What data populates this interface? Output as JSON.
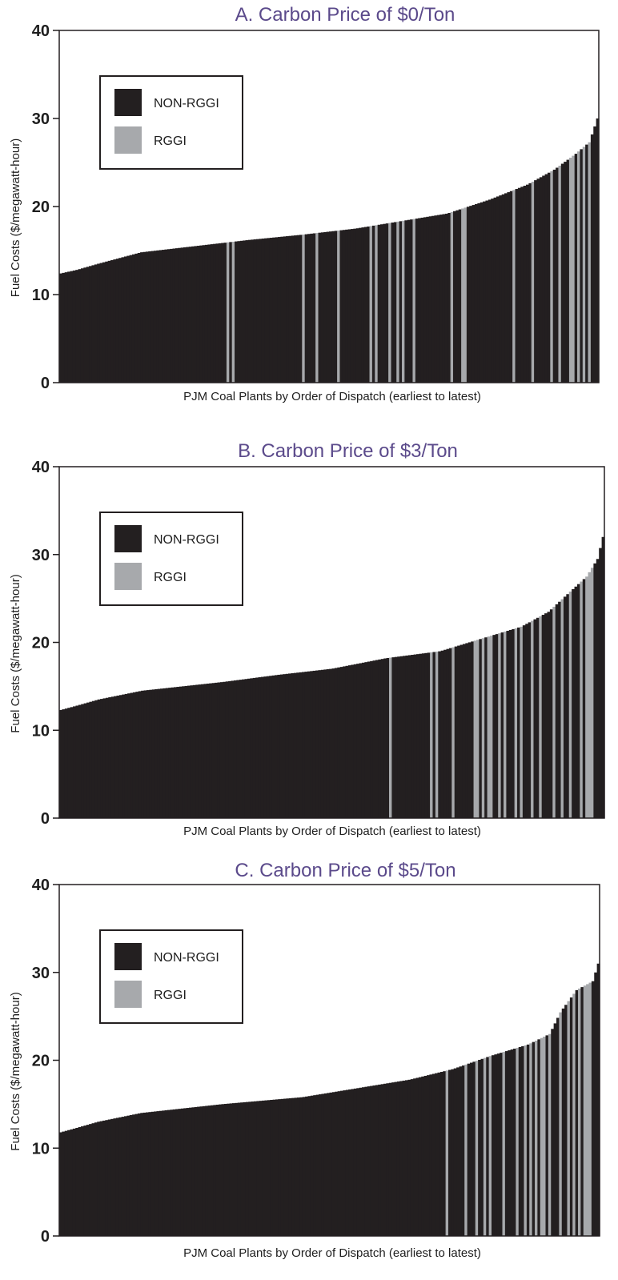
{
  "colors": {
    "non_rggi": "#231f20",
    "rggi": "#a7a9ac",
    "title": "#5b4a8b"
  },
  "chart_data": [
    {
      "type": "bar",
      "title": "A. Carbon Price of $0/Ton",
      "xlabel": "PJM Coal Plants by Order of Dispatch (earliest to latest)",
      "ylabel": "Fuel Costs ($/megawatt-hour)",
      "ylim": [
        0,
        40
      ],
      "yticks": [
        0,
        10,
        20,
        30,
        40
      ],
      "grid": false,
      "legend": {
        "placement": "top-left",
        "entries": [
          "NON-RGGI",
          "RGGI"
        ]
      },
      "series": [
        {
          "name": "NON-RGGI"
        },
        {
          "name": "RGGI"
        }
      ],
      "plants": 200,
      "start_value": 12.4,
      "end_value": 30.0,
      "curve": [
        [
          0,
          12.4
        ],
        [
          0.03,
          12.8
        ],
        [
          0.07,
          13.5
        ],
        [
          0.15,
          14.8
        ],
        [
          0.25,
          15.5
        ],
        [
          0.35,
          16.2
        ],
        [
          0.45,
          16.8
        ],
        [
          0.55,
          17.5
        ],
        [
          0.65,
          18.5
        ],
        [
          0.72,
          19.2
        ],
        [
          0.8,
          20.8
        ],
        [
          0.87,
          22.5
        ],
        [
          0.92,
          24.2
        ],
        [
          0.96,
          26.0
        ],
        [
          0.985,
          27.3
        ],
        [
          1.0,
          30.0
        ]
      ],
      "rggi_positions": [
        0.313,
        0.323,
        0.452,
        0.476,
        0.52,
        0.578,
        0.587,
        0.615,
        0.63,
        0.64,
        0.66,
        0.728,
        0.748,
        0.753,
        0.843,
        0.878,
        0.915,
        0.932,
        0.948,
        0.956,
        0.963,
        0.976,
        0.986
      ]
    },
    {
      "type": "bar",
      "title": "B. Carbon Price of $3/Ton",
      "xlabel": "PJM Coal Plants by Order of Dispatch (earliest to latest)",
      "ylabel": "Fuel Costs ($/megawatt-hour)",
      "ylim": [
        0,
        40
      ],
      "yticks": [
        0,
        10,
        20,
        30,
        40
      ],
      "grid": false,
      "legend": {
        "placement": "top-left",
        "entries": [
          "NON-RGGI",
          "RGGI"
        ]
      },
      "series": [
        {
          "name": "NON-RGGI"
        },
        {
          "name": "RGGI"
        }
      ],
      "plants": 200,
      "start_value": 12.3,
      "end_value": 32.0,
      "curve": [
        [
          0,
          12.3
        ],
        [
          0.03,
          12.8
        ],
        [
          0.07,
          13.5
        ],
        [
          0.15,
          14.5
        ],
        [
          0.3,
          15.5
        ],
        [
          0.4,
          16.3
        ],
        [
          0.5,
          17.0
        ],
        [
          0.6,
          18.2
        ],
        [
          0.7,
          19.0
        ],
        [
          0.78,
          20.5
        ],
        [
          0.85,
          21.8
        ],
        [
          0.9,
          23.5
        ],
        [
          0.94,
          25.8
        ],
        [
          0.97,
          27.5
        ],
        [
          0.99,
          29.5
        ],
        [
          1.0,
          32.0
        ]
      ],
      "rggi_positions": [
        0.607,
        0.681,
        0.695,
        0.723,
        0.762,
        0.77,
        0.78,
        0.787,
        0.795,
        0.808,
        0.82,
        0.838,
        0.848,
        0.87,
        0.885,
        0.912,
        0.925,
        0.94,
        0.96,
        0.968,
        0.975,
        0.982
      ]
    },
    {
      "type": "bar",
      "title": "C. Carbon Price of $5/Ton",
      "xlabel": "PJM Coal Plants by Order of Dispatch (earliest to latest)",
      "ylabel": "Fuel Costs ($/megawatt-hour)",
      "ylim": [
        0,
        40
      ],
      "yticks": [
        0,
        10,
        20,
        30,
        40
      ],
      "grid": false,
      "legend": {
        "placement": "top-left",
        "entries": [
          "NON-RGGI",
          "RGGI"
        ]
      },
      "series": [
        {
          "name": "NON-RGGI"
        },
        {
          "name": "RGGI"
        }
      ],
      "plants": 200,
      "start_value": 11.8,
      "end_value": 31.0,
      "curve": [
        [
          0,
          11.8
        ],
        [
          0.03,
          12.3
        ],
        [
          0.07,
          13.0
        ],
        [
          0.15,
          14.0
        ],
        [
          0.3,
          15.0
        ],
        [
          0.45,
          15.8
        ],
        [
          0.55,
          16.8
        ],
        [
          0.65,
          17.8
        ],
        [
          0.73,
          19.0
        ],
        [
          0.8,
          20.5
        ],
        [
          0.87,
          21.8
        ],
        [
          0.91,
          23.0
        ],
        [
          0.93,
          25.5
        ],
        [
          0.96,
          28.0
        ],
        [
          0.99,
          29.0
        ],
        [
          1.0,
          31.0
        ]
      ],
      "rggi_positions": [
        0.72,
        0.753,
        0.772,
        0.787,
        0.8,
        0.825,
        0.85,
        0.862,
        0.872,
        0.882,
        0.892,
        0.9,
        0.912,
        0.93,
        0.947,
        0.953,
        0.966,
        0.974,
        0.981,
        0.987
      ]
    }
  ]
}
